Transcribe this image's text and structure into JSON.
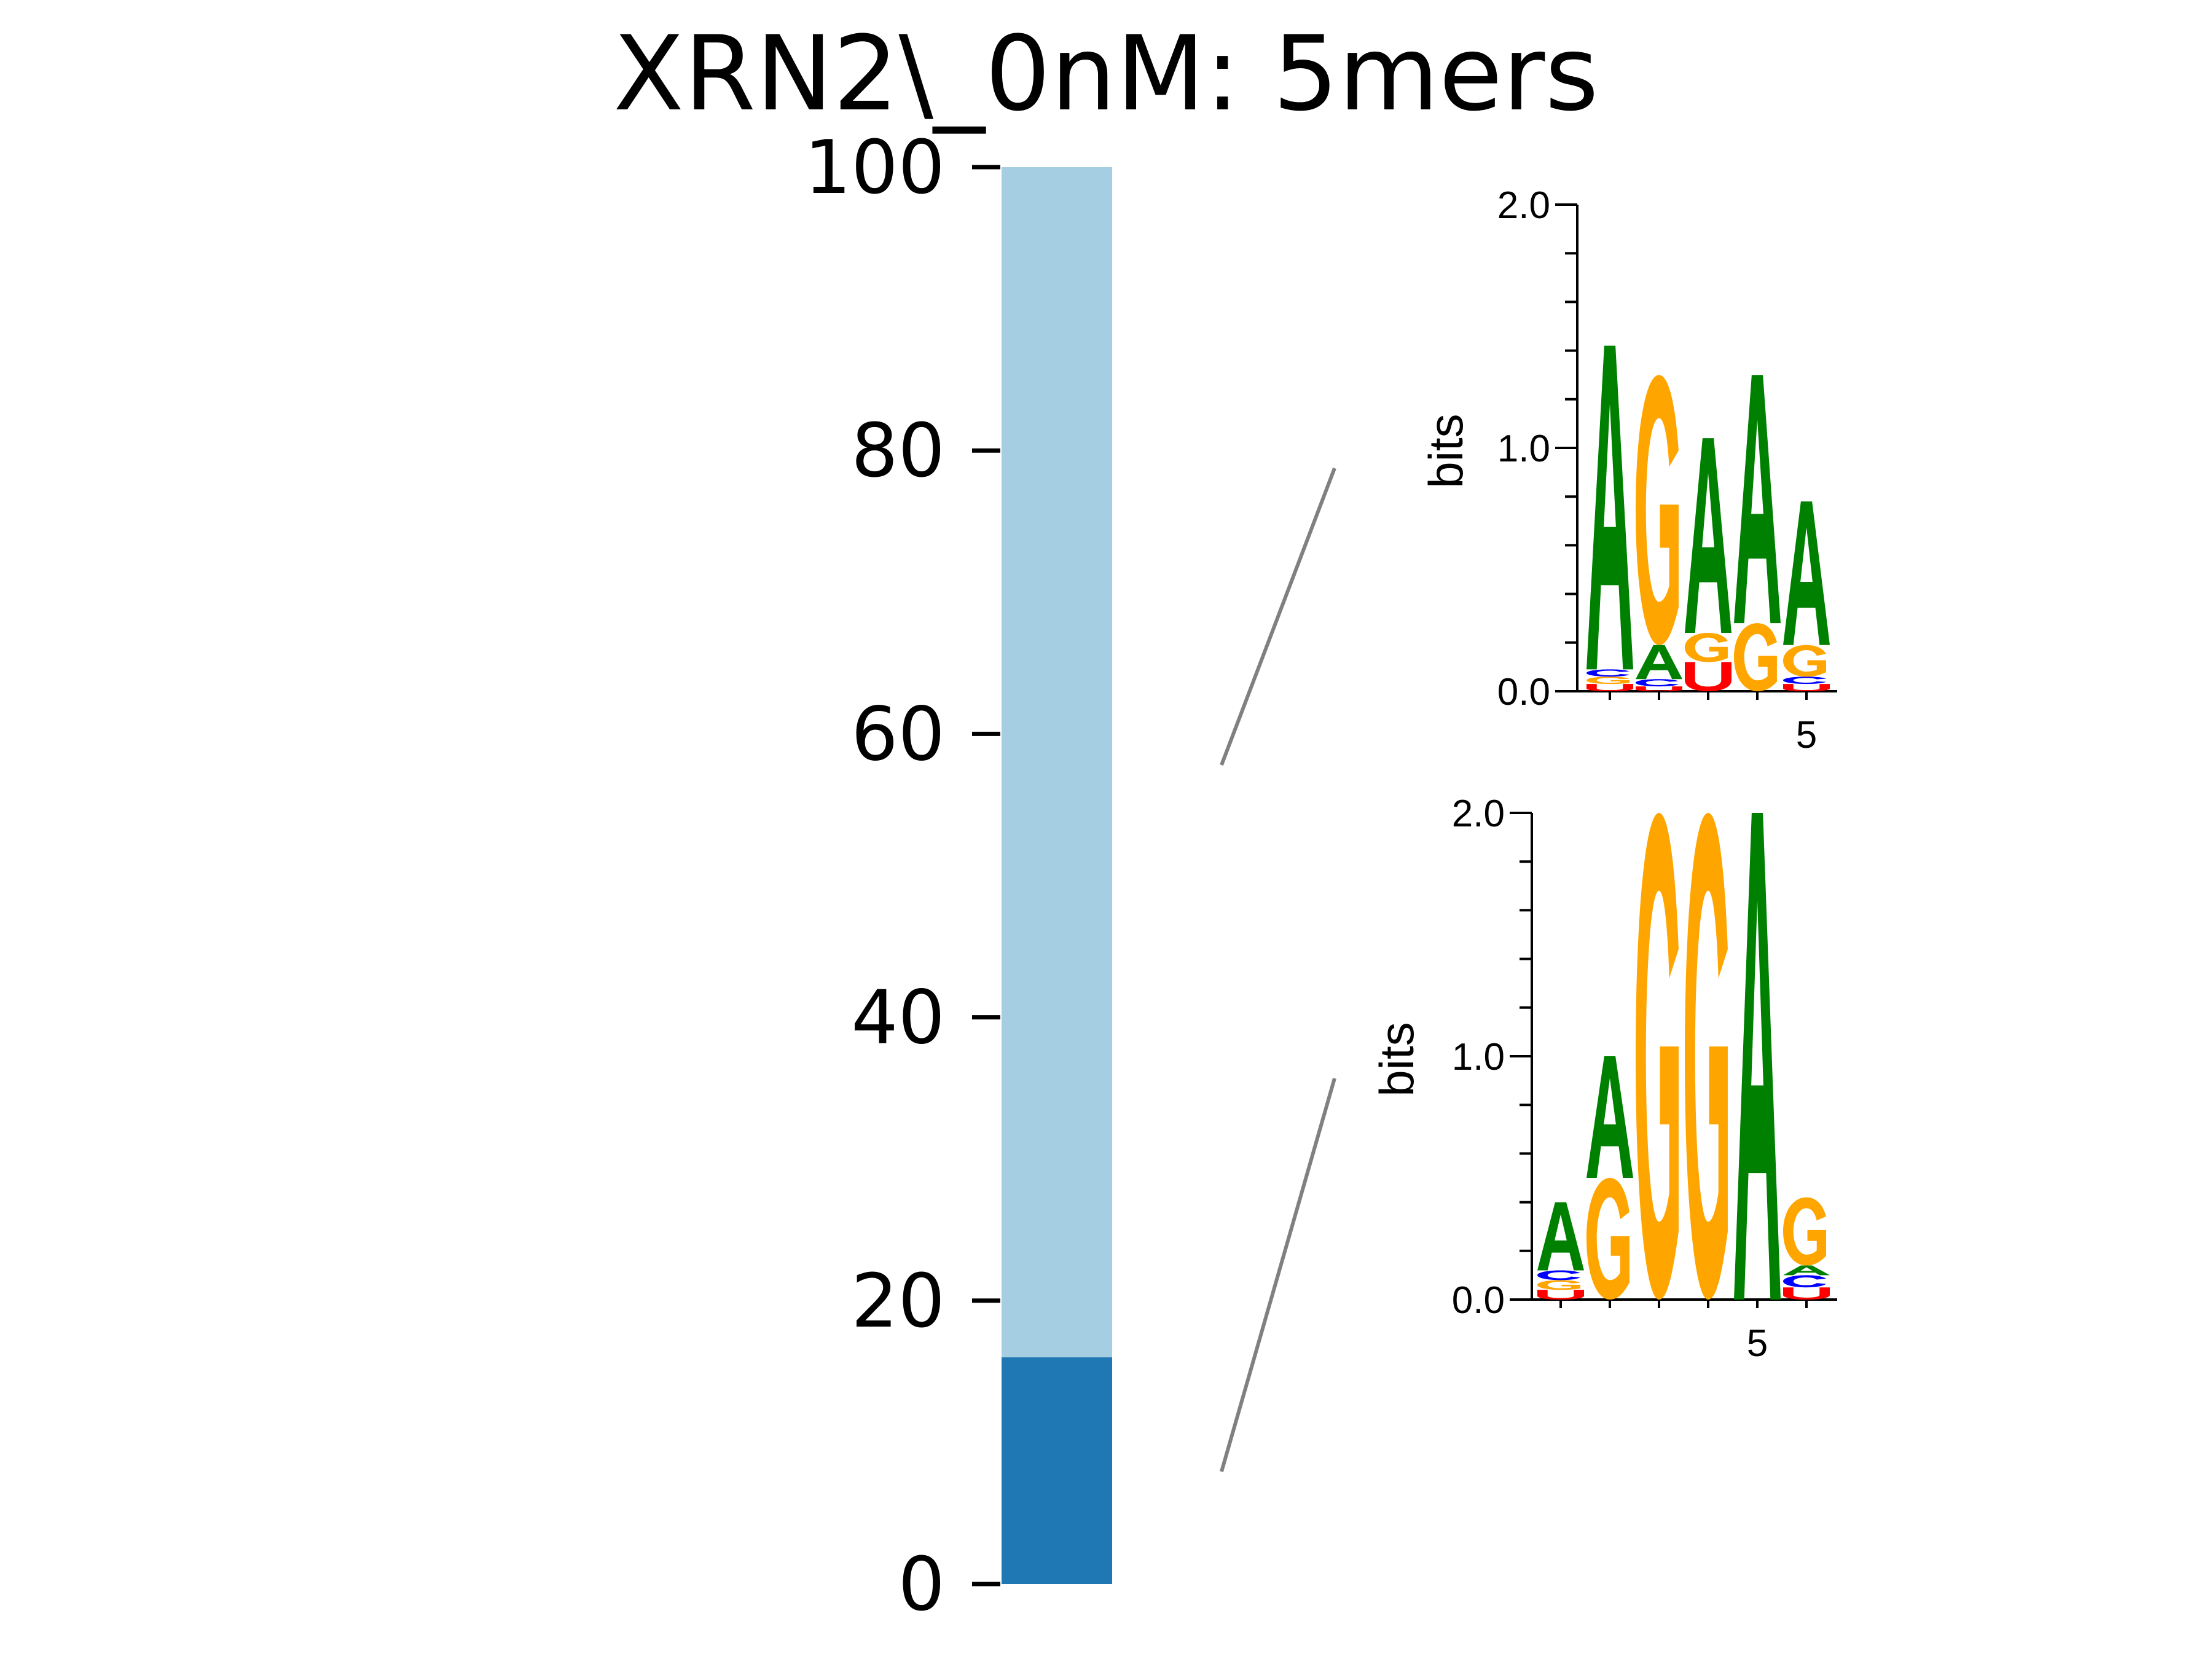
{
  "chart_data": {
    "type": "bar",
    "title": "XRN2\\_0nM: 5mers",
    "stacked_bar": {
      "ylim": [
        0,
        100
      ],
      "yticks": [
        "0",
        "20",
        "40",
        "60",
        "80",
        "100"
      ],
      "segments": [
        {
          "value": 16,
          "color": "#1f77b4"
        },
        {
          "value": 84,
          "color": "#a6cee3"
        }
      ]
    },
    "logos": [
      {
        "ylabel": "bits",
        "ytick_labels": [
          "0.0",
          "1.0",
          "2.0"
        ],
        "xtick_label": "5",
        "ylim": [
          0,
          2
        ],
        "positions": [
          [
            {
              "l": "U",
              "h": 0.03
            },
            {
              "l": "G",
              "h": 0.03
            },
            {
              "l": "C",
              "h": 0.03
            },
            {
              "l": "A",
              "h": 1.33
            }
          ],
          [
            {
              "l": "U",
              "h": 0.02
            },
            {
              "l": "C",
              "h": 0.03
            },
            {
              "l": "A",
              "h": 0.14
            },
            {
              "l": "G",
              "h": 1.11
            }
          ],
          [
            {
              "l": "U",
              "h": 0.12
            },
            {
              "l": "G",
              "h": 0.12
            },
            {
              "l": "A",
              "h": 0.8
            }
          ],
          [
            {
              "l": "G",
              "h": 0.28
            },
            {
              "l": "A",
              "h": 1.02
            }
          ],
          [
            {
              "l": "U",
              "h": 0.03
            },
            {
              "l": "C",
              "h": 0.03
            },
            {
              "l": "G",
              "h": 0.13
            },
            {
              "l": "A",
              "h": 0.59
            }
          ]
        ]
      },
      {
        "ylabel": "bits",
        "ytick_labels": [
          "0.0",
          "1.0",
          "2.0"
        ],
        "xtick_label": "5",
        "ylim": [
          0,
          2
        ],
        "positions": [
          [
            {
              "l": "U",
              "h": 0.04
            },
            {
              "l": "G",
              "h": 0.04
            },
            {
              "l": "C",
              "h": 0.04
            },
            {
              "l": "A",
              "h": 0.28
            }
          ],
          [
            {
              "l": "G",
              "h": 0.5
            },
            {
              "l": "A",
              "h": 0.5
            }
          ],
          [
            {
              "l": "G",
              "h": 2.0
            }
          ],
          [
            {
              "l": "G",
              "h": 2.0
            }
          ],
          [
            {
              "l": "A",
              "h": 2.0
            }
          ],
          [
            {
              "l": "U",
              "h": 0.05
            },
            {
              "l": "C",
              "h": 0.05
            },
            {
              "l": "A",
              "h": 0.04
            },
            {
              "l": "G",
              "h": 0.28
            }
          ]
        ]
      }
    ]
  },
  "colors": {
    "A": "#008000",
    "C": "#0000ff",
    "G": "#ffa500",
    "U": "#ff0000",
    "connector": "#808080"
  }
}
